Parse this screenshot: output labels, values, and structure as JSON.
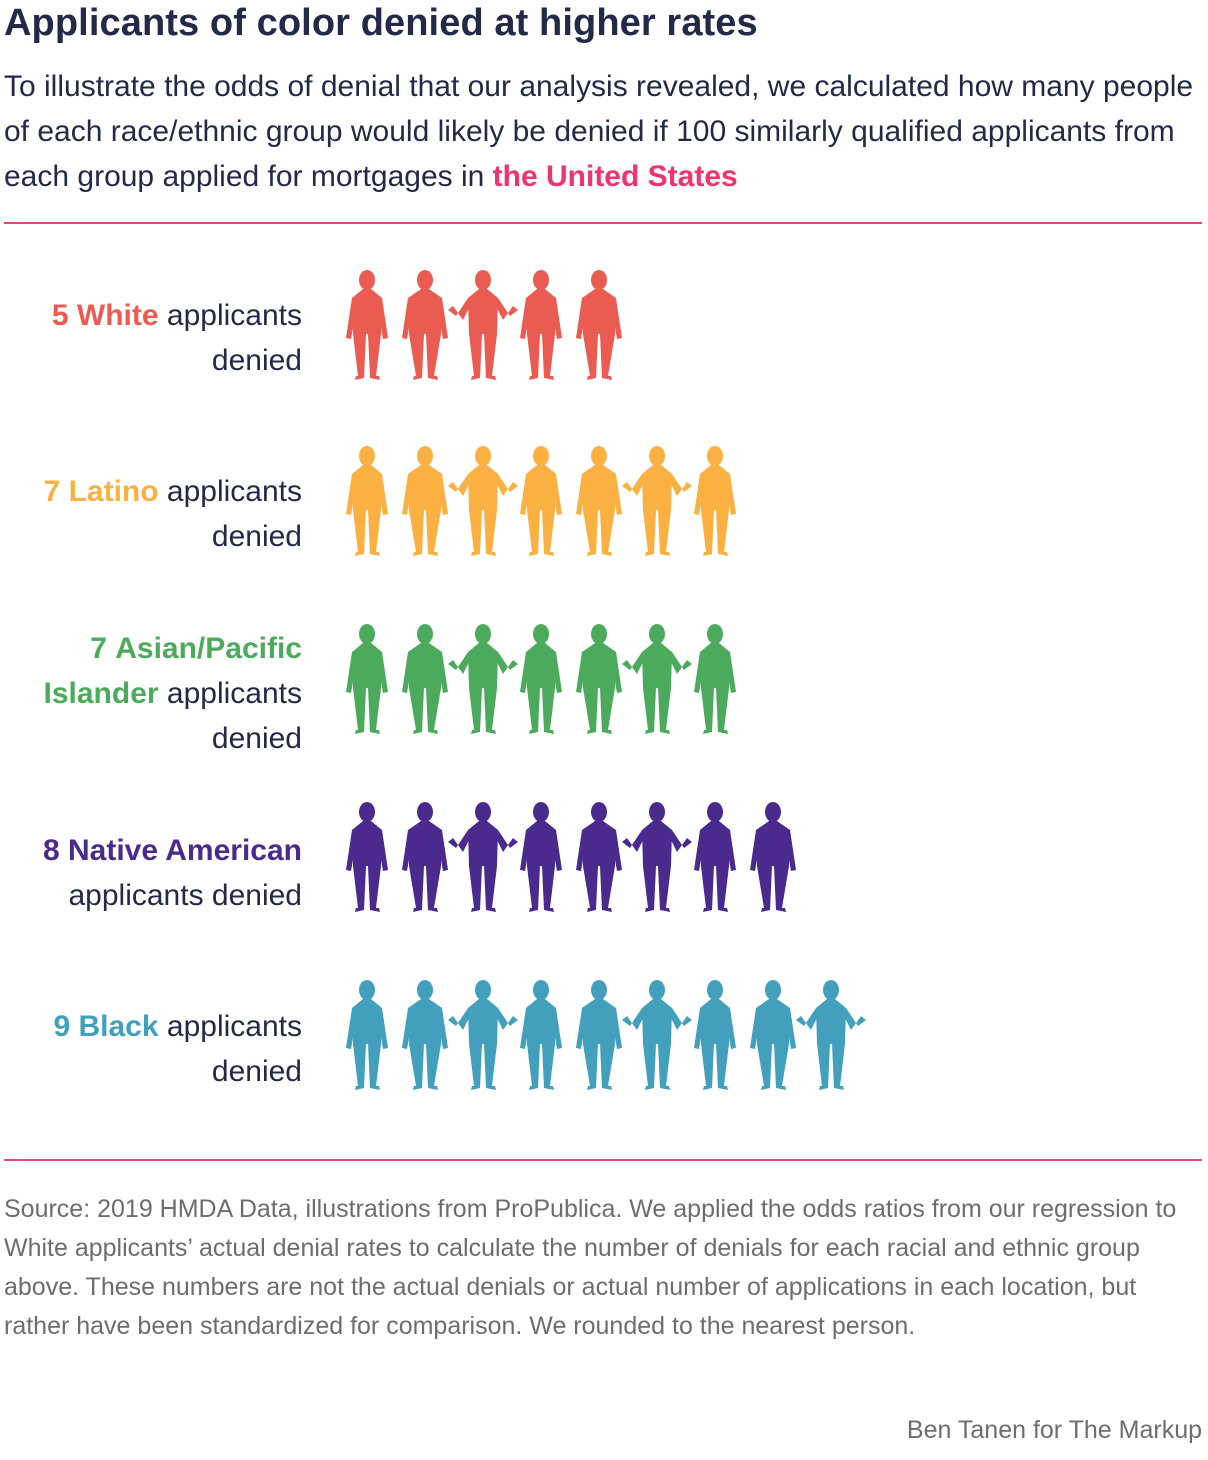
{
  "title": "Applicants of color denied at higher rates",
  "subtitle": {
    "text": "To illustrate the odds of denial that our analysis revealed, we calculated how many people of each race/ethnic group would likely be denied if 100 similarly qualified applicants from each group applied for mortgages in",
    "highlight": "the United States",
    "highlight_color": "#f0336b"
  },
  "chart_data": {
    "type": "pictogram",
    "unit": "applicants denied per 100 similarly qualified applicants",
    "rows": [
      {
        "count": 5,
        "group": "White",
        "suffix_line1": "applicants",
        "suffix_line2": "denied",
        "color": "#ea5b52"
      },
      {
        "count": 7,
        "group": "Latino",
        "suffix_line1": "applicants",
        "suffix_line2": "denied",
        "color": "#fbb042"
      },
      {
        "count": 7,
        "group": "Asian/Pacific Islander",
        "group_line1": "Asian/Pacific",
        "group_line2": "Islander",
        "suffix_line1": "applicants",
        "suffix_line2": "denied",
        "color": "#4caa5c"
      },
      {
        "count": 8,
        "group": "Native American",
        "suffix_line1": "",
        "suffix_line2": "applicants denied",
        "color": "#4a2a8c"
      },
      {
        "count": 9,
        "group": "Black",
        "suffix_line1": "applicants",
        "suffix_line2": "denied",
        "color": "#43a0bd"
      }
    ]
  },
  "source": "Source: 2019 HMDA Data, illustrations from ProPublica. We applied the odds ratios from our regression to White applicants’ actual denial rates to calculate the number of denials for each racial and ethnic group above. These numbers are not the actual denials or actual number of applications in each location, but rather have been standardized for comparison. We rounded to the nearest person.",
  "credit": "Ben Tanen for The Markup"
}
